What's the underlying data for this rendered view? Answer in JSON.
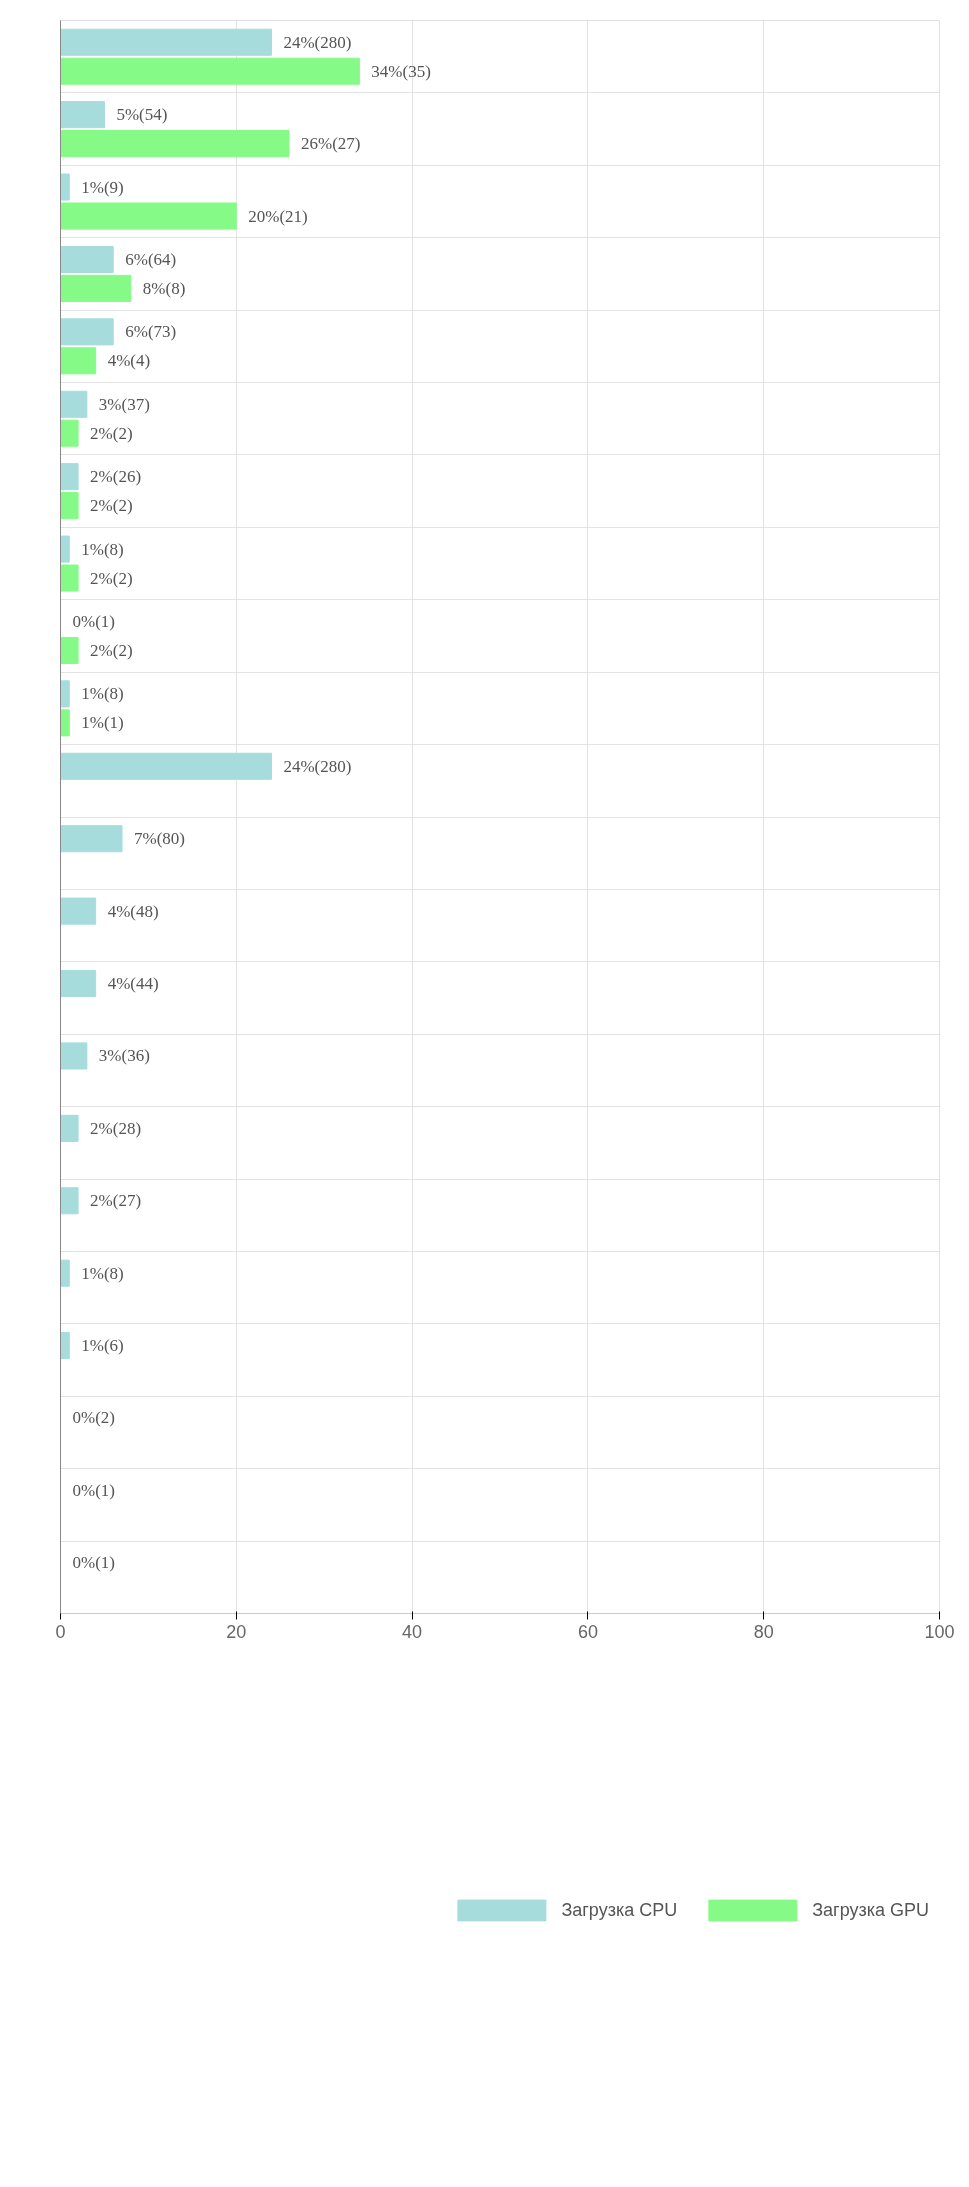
{
  "chart_data": {
    "type": "bar",
    "orientation": "horizontal",
    "categories": [
      null,
      null,
      null,
      null,
      null,
      null,
      null,
      null,
      null,
      null,
      null,
      null,
      null,
      null,
      null,
      null,
      null,
      null,
      null,
      null,
      null,
      null
    ],
    "series": [
      {
        "name": "Загрузка CPU",
        "color": "#a6dcdc",
        "values": [
          24,
          5,
          1,
          6,
          6,
          3,
          2,
          1,
          0,
          1,
          24,
          7,
          4,
          4,
          3,
          2,
          2,
          1,
          1,
          0,
          0,
          0
        ],
        "value_labels": [
          "24%(280)",
          "5%(54)",
          "1%(9)",
          "6%(64)",
          "6%(73)",
          "3%(37)",
          "2%(26)",
          "1%(8)",
          "0%(1)",
          "1%(8)",
          "24%(280)",
          "7%(80)",
          "4%(48)",
          "4%(44)",
          "3%(36)",
          "2%(28)",
          "2%(27)",
          "1%(8)",
          "1%(6)",
          "0%(2)",
          "0%(1)",
          "0%(1)"
        ]
      },
      {
        "name": "Загрузка GPU",
        "color": "#86fa86",
        "values": [
          34,
          26,
          20,
          8,
          4,
          2,
          2,
          2,
          2,
          1,
          null,
          null,
          null,
          null,
          null,
          null,
          null,
          null,
          null,
          null,
          null,
          null
        ],
        "value_labels": [
          "34%(35)",
          "26%(27)",
          "20%(21)",
          "8%(8)",
          "4%(4)",
          "2%(2)",
          "2%(2)",
          "2%(2)",
          "2%(2)",
          "1%(1)",
          null,
          null,
          null,
          null,
          null,
          null,
          null,
          null,
          null,
          null,
          null,
          null
        ]
      }
    ],
    "xlim": [
      0,
      100
    ],
    "xticks": [
      0,
      20,
      40,
      60,
      80,
      100
    ],
    "grid": true,
    "legend": "bottom"
  }
}
